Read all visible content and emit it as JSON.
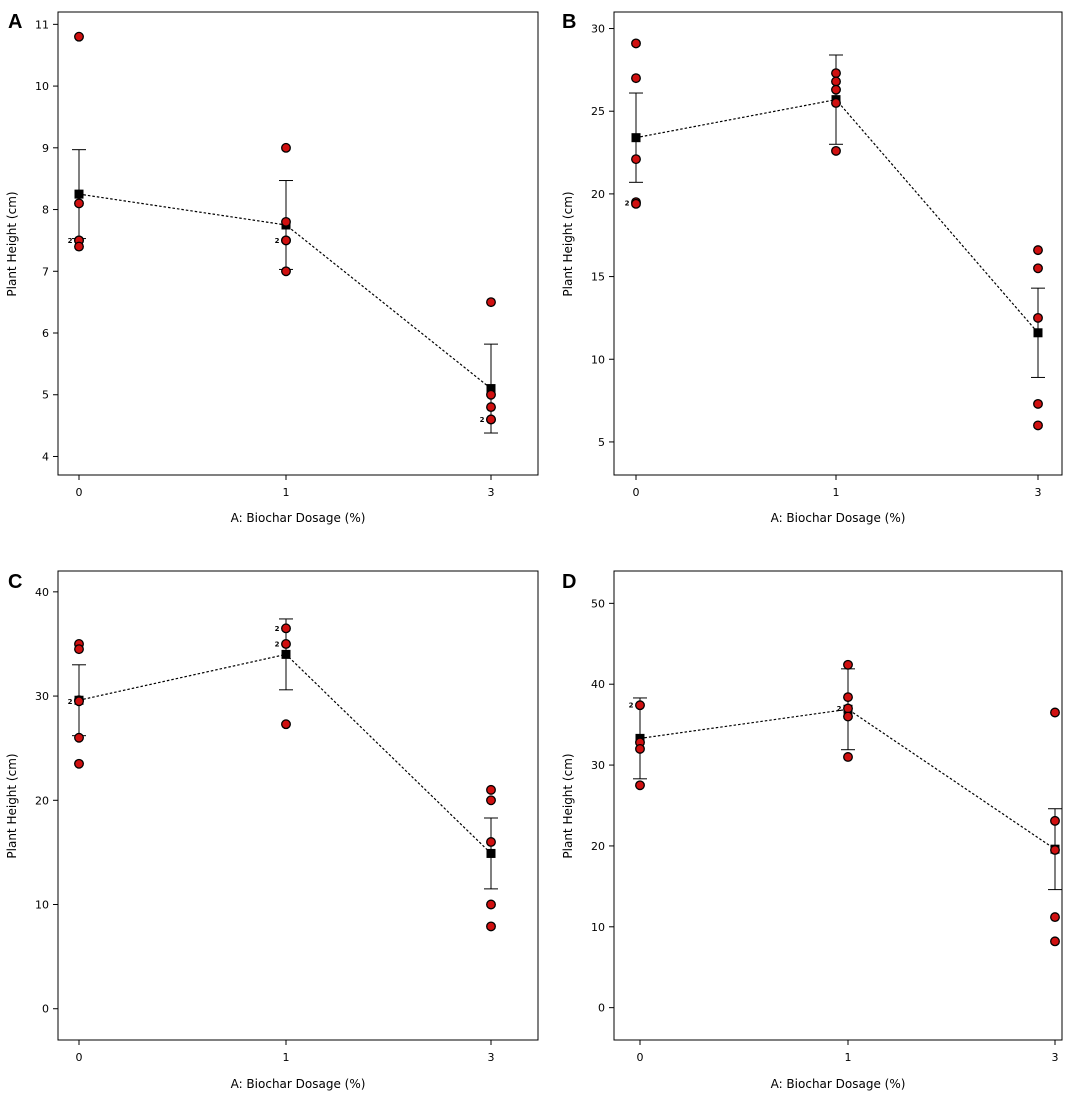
{
  "figure": {
    "style": {
      "point_fill": "#d01010",
      "point_stroke": "#000000",
      "mean_color": "#000000",
      "line_color": "#000000"
    }
  },
  "chart_data": [
    {
      "panel": "A",
      "type": "scatter",
      "xlabel": "A: Biochar Dosage (%)",
      "ylabel": "Plant Height (cm)",
      "categories": [
        "0",
        "1",
        "3"
      ],
      "ylim": [
        3.7,
        11.2
      ],
      "yticks": [
        4,
        5,
        6,
        7,
        8,
        9,
        10,
        11
      ],
      "means": [
        8.25,
        7.75,
        5.1
      ],
      "error_low": [
        7.53,
        7.03,
        4.38
      ],
      "error_high": [
        8.97,
        8.47,
        5.82
      ],
      "points": [
        [
          10.8,
          8.1,
          7.5,
          7.5,
          7.4
        ],
        [
          9.0,
          7.8,
          7.5,
          7.5,
          7.0
        ],
        [
          6.5,
          5.0,
          4.8,
          4.6,
          4.6
        ]
      ],
      "count_labels": [
        {
          "x": "0",
          "y": 7.5,
          "text": "2"
        },
        {
          "x": "1",
          "y": 7.5,
          "text": "2"
        },
        {
          "x": "3",
          "y": 4.6,
          "text": "2"
        }
      ]
    },
    {
      "panel": "B",
      "type": "scatter",
      "xlabel": "A: Biochar Dosage (%)",
      "ylabel": "Plant Height (cm)",
      "categories": [
        "0",
        "1",
        "3"
      ],
      "ylim": [
        3.0,
        31.0
      ],
      "yticks": [
        5,
        10,
        15,
        20,
        25,
        30
      ],
      "means": [
        23.4,
        25.7,
        11.6
      ],
      "error_low": [
        20.7,
        23.0,
        8.9
      ],
      "error_high": [
        26.1,
        28.4,
        14.3
      ],
      "points": [
        [
          29.1,
          27.0,
          22.1,
          19.5,
          19.4
        ],
        [
          27.3,
          26.8,
          26.3,
          25.5,
          22.6
        ],
        [
          16.6,
          15.5,
          12.5,
          7.3,
          6.0
        ]
      ],
      "count_labels": [
        {
          "x": "0",
          "y": 19.45,
          "text": "2"
        }
      ]
    },
    {
      "panel": "C",
      "type": "scatter",
      "xlabel": "A: Biochar Dosage (%)",
      "ylabel": "Plant Height (cm)",
      "categories": [
        "0",
        "1",
        "3"
      ],
      "ylim": [
        -3.0,
        42.0
      ],
      "yticks": [
        0,
        10,
        20,
        30,
        40
      ],
      "means": [
        29.6,
        34.0,
        14.9
      ],
      "error_low": [
        26.2,
        30.6,
        11.5
      ],
      "error_high": [
        33.0,
        37.4,
        18.3
      ],
      "points": [
        [
          35.0,
          34.5,
          29.6,
          29.5,
          26.0,
          23.5
        ],
        [
          36.5,
          35.0,
          27.3
        ],
        [
          21.0,
          20.0,
          16.0,
          10.0,
          7.9
        ]
      ],
      "count_labels": [
        {
          "x": "0",
          "y": 29.5,
          "text": "2"
        },
        {
          "x": "1",
          "y": 36.5,
          "text": "2"
        },
        {
          "x": "1",
          "y": 35.0,
          "text": "2"
        }
      ]
    },
    {
      "panel": "D",
      "type": "scatter",
      "xlabel": "A: Biochar Dosage (%)",
      "ylabel": "Plant Height (cm)",
      "categories": [
        "0",
        "1",
        "3"
      ],
      "ylim": [
        -4.0,
        54.0
      ],
      "yticks": [
        0,
        10,
        20,
        30,
        40,
        50
      ],
      "means": [
        33.3,
        36.9,
        19.6
      ],
      "error_low": [
        28.3,
        31.9,
        14.6
      ],
      "error_high": [
        38.3,
        41.9,
        24.6
      ],
      "points": [
        [
          37.4,
          32.8,
          32.0,
          27.5
        ],
        [
          42.4,
          38.4,
          37.0,
          36.0,
          31.0
        ],
        [
          36.5,
          23.1,
          19.5,
          11.2,
          8.2
        ]
      ],
      "count_labels": [
        {
          "x": "0",
          "y": 37.4,
          "text": "2"
        },
        {
          "x": "1",
          "y": 37.0,
          "text": "2"
        }
      ]
    }
  ]
}
